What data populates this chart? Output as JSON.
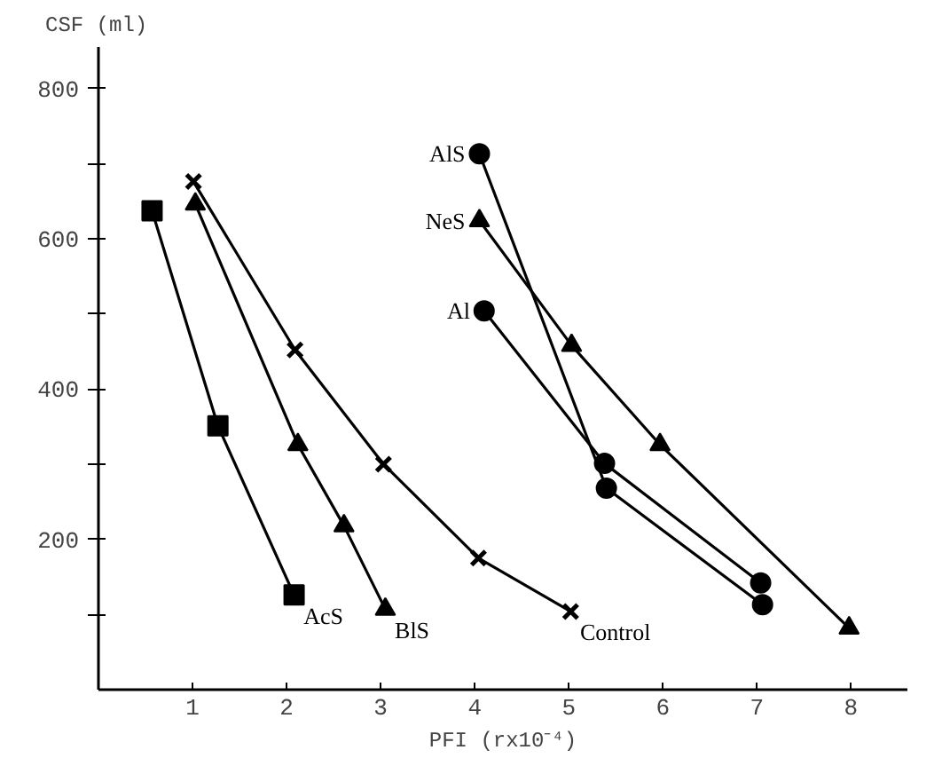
{
  "chart_data": {
    "type": "line",
    "xlabel": "PFI (rx10⁻⁴)",
    "ylabel": "CSF (ml)",
    "xlim": [
      0,
      8.6
    ],
    "ylim": [
      0,
      855
    ],
    "xticks": [
      1,
      2,
      3,
      4,
      5,
      6,
      7,
      8
    ],
    "yticks": [
      {
        "value": 100,
        "label": null
      },
      200,
      {
        "value": 300,
        "label": null
      },
      400,
      {
        "value": 500,
        "label": null
      },
      600,
      {
        "value": 700,
        "label": null
      },
      800
    ],
    "grid": false,
    "legend": false,
    "line_style": "solid",
    "series": [
      {
        "name": "AcS",
        "color": "#000000",
        "marker": "square",
        "x": [
          0.57,
          1.27,
          2.08
        ],
        "values": [
          637,
          351,
          126
        ]
      },
      {
        "name": "BlS",
        "color": "#000000",
        "marker": "triangle",
        "x": [
          1.03,
          2.12,
          2.61,
          3.05
        ],
        "values": [
          646,
          326,
          218,
          107
        ]
      },
      {
        "name": "Control",
        "color": "#000000",
        "marker": "cross",
        "x": [
          1.01,
          2.09,
          3.03,
          4.04,
          5.02
        ],
        "values": [
          676,
          452,
          300,
          175,
          104
        ]
      },
      {
        "name": "AlS",
        "color": "#000000",
        "marker": "circle",
        "x": [
          4.05,
          5.4,
          7.06
        ],
        "values": [
          713,
          268,
          113
        ]
      },
      {
        "name": "NeS",
        "color": "#000000",
        "marker": "triangle",
        "x": [
          4.05,
          5.03,
          5.97,
          7.98
        ],
        "values": [
          624,
          458,
          326,
          82
        ]
      },
      {
        "name": "Al",
        "color": "#000000",
        "marker": "circle",
        "x": [
          4.1,
          5.38,
          7.04
        ],
        "values": [
          504,
          301,
          142
        ]
      }
    ]
  }
}
